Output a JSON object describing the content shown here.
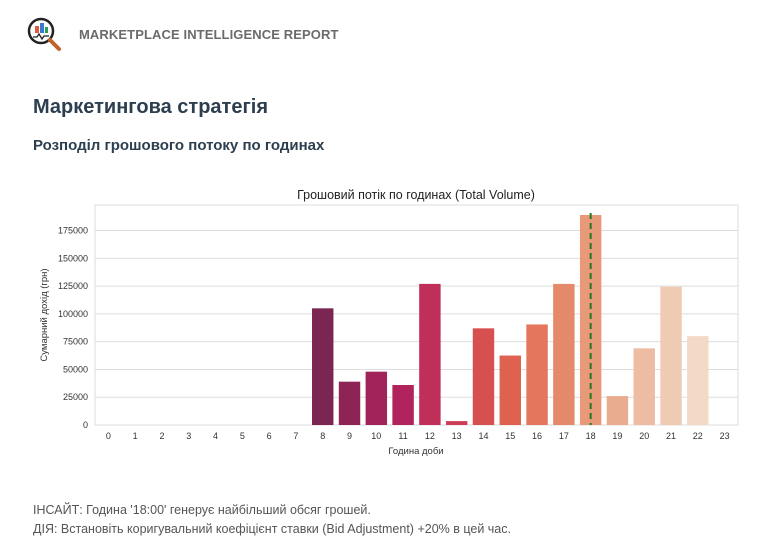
{
  "header": {
    "brand": "MARKETPLACE INTELLIGENCE REPORT",
    "logo_icon": "magnifier-chart-icon"
  },
  "page": {
    "title": "Маркетингова стратегія",
    "subtitle": "Розподіл грошового потоку по годинах"
  },
  "chart_data": {
    "type": "bar",
    "title": "Грошовий потік по годинах (Total Volume)",
    "xlabel": "Година доби",
    "ylabel": "Сумарний дохід (грн)",
    "categories": [
      "0",
      "1",
      "2",
      "3",
      "4",
      "5",
      "6",
      "7",
      "8",
      "9",
      "10",
      "11",
      "12",
      "13",
      "14",
      "15",
      "16",
      "17",
      "18",
      "19",
      "20",
      "21",
      "22",
      "23"
    ],
    "values": [
      0,
      0,
      0,
      0,
      0,
      0,
      0,
      0,
      105000,
      39000,
      48000,
      36000,
      127000,
      3500,
      87000,
      62500,
      90500,
      127000,
      189000,
      26000,
      69000,
      124500,
      80000,
      0
    ],
    "colors": [
      "#35193e",
      "#3f1b44",
      "#4a1c49",
      "#561e4f",
      "#611f53",
      "#6d1f56",
      "#7a1f58",
      "#862158",
      "#7b2553",
      "#8e2456",
      "#a0235a",
      "#b0235c",
      "#bf2f5a",
      "#cc3e57",
      "#d5504f",
      "#de624f",
      "#e3765d",
      "#e5896b",
      "#e8997a",
      "#eaac8f",
      "#edbca3",
      "#efcbb4",
      "#f2dac7",
      "#f5e6da"
    ],
    "yticks": [
      0,
      25000,
      50000,
      75000,
      100000,
      125000,
      150000,
      175000
    ],
    "ylim": [
      0,
      198000
    ],
    "highlight": {
      "category": "18",
      "color": "#1e7a1e",
      "style": "dashed"
    },
    "grid": true
  },
  "notes": {
    "insight": "ІНСАЙТ: Година '18:00' генерує найбільший обсяг грошей.",
    "action": "ДІЯ: Встановіть коригувальний коефіцієнт ставки (Bid Adjustment) +20% в цей час."
  }
}
